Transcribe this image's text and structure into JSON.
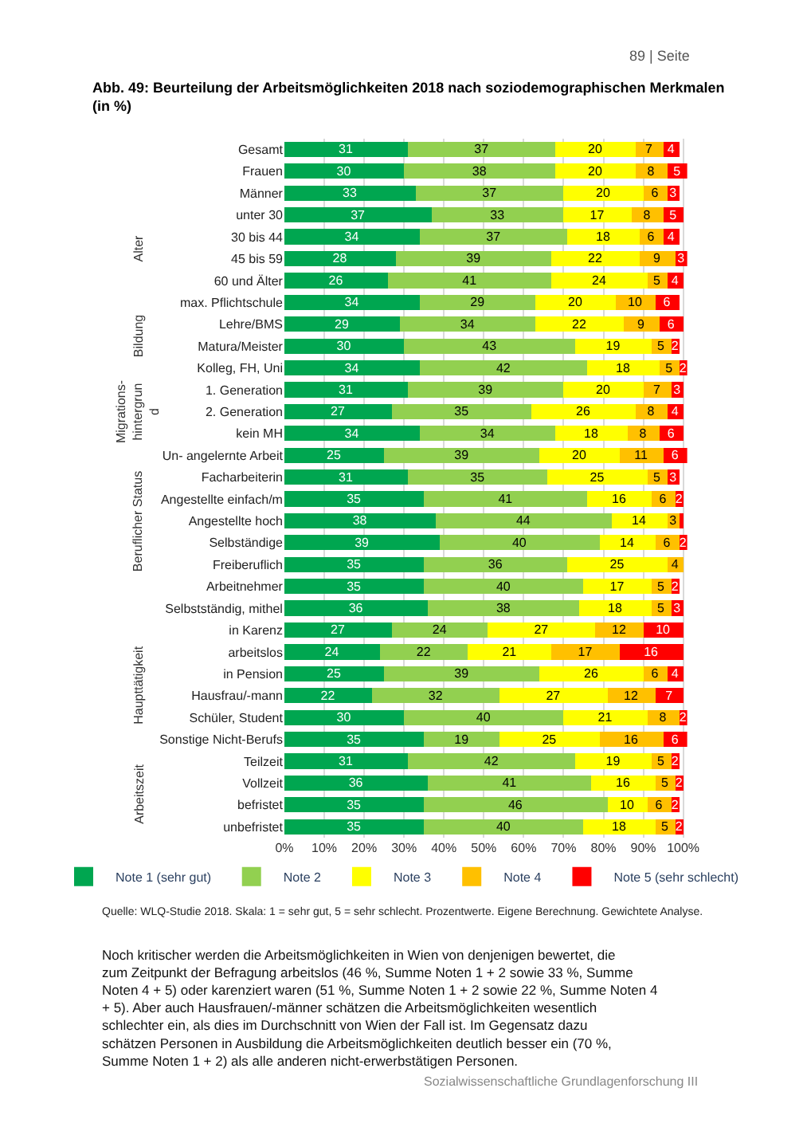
{
  "chart_data": {
    "type": "bar",
    "orientation": "horizontal",
    "stacked": true,
    "title": "Abb. 49: Beurteilung der Arbeitsmöglichkeiten 2018 nach soziodemographischen Merkmalen (in %)",
    "categories": [
      "Gesamt",
      "Frauen",
      "Männer",
      "unter 30",
      "30 bis 44",
      "45 bis 59",
      "60 und Älter",
      "max. Pflichtschule",
      "Lehre/BMS",
      "Matura/Meister",
      "Kolleg, FH, Uni",
      "1. Generation",
      "2. Generation",
      "kein MH",
      "Un- angelernte Arbeit",
      "Facharbeiterin",
      "Angestellte einfach/m",
      "Angestellte hoch",
      "Selbständige",
      "Freiberuflich",
      "Arbeitnehmer",
      "Selbstständig, mithel",
      "in Karenz",
      "arbeitslos",
      "in Pension",
      "Hausfrau/-mann",
      "Schüler, Student",
      "Sonstige Nicht-Berufs",
      "Teilzeit",
      "Vollzeit",
      "befristet",
      "unbefristet"
    ],
    "series": [
      {
        "name": "Note 1 (sehr gut)",
        "color": "#00a650",
        "values": [
          31,
          30,
          33,
          37,
          34,
          28,
          26,
          34,
          29,
          30,
          34,
          31,
          27,
          34,
          25,
          31,
          35,
          38,
          39,
          35,
          35,
          36,
          27,
          24,
          25,
          22,
          30,
          35,
          31,
          36,
          35,
          35
        ],
        "value_labels": [
          "31",
          "30",
          "33",
          "37",
          "34",
          "28",
          "26",
          "34",
          "29",
          "30",
          "34",
          "31",
          "27",
          "34",
          "25",
          "31",
          "35",
          "38",
          "39",
          "35",
          "35",
          "36",
          "27",
          "24",
          "25",
          "22",
          "30",
          "35",
          "31",
          "36",
          "35",
          "35"
        ]
      },
      {
        "name": "Note 2",
        "color": "#92d050",
        "values": [
          37,
          38,
          37,
          33,
          37,
          39,
          41,
          29,
          34,
          43,
          42,
          39,
          35,
          34,
          39,
          35,
          41,
          44,
          40,
          36,
          40,
          38,
          24,
          22,
          39,
          32,
          40,
          19,
          42,
          41,
          46,
          40
        ],
        "value_labels": [
          "37",
          "38",
          "37",
          "33",
          "37",
          "39",
          "41",
          "29",
          "34",
          "43",
          "42",
          "39",
          "35",
          "34",
          "39",
          "35",
          "41",
          "44",
          "40",
          "36",
          "40",
          "38",
          "24",
          "22",
          "39",
          "32",
          "40",
          "19",
          "42",
          "41",
          "46",
          "40"
        ]
      },
      {
        "name": "Note 3",
        "color": "#ffff00",
        "values": [
          20,
          20,
          20,
          17,
          18,
          22,
          24,
          20,
          22,
          19,
          18,
          20,
          26,
          18,
          20,
          25,
          16,
          14,
          14,
          25,
          17,
          18,
          27,
          21,
          26,
          27,
          21,
          25,
          19,
          16,
          10,
          18
        ],
        "value_labels": [
          "20",
          "20",
          "20",
          "17",
          "18",
          "22",
          "24",
          "20",
          "22",
          "19",
          "18",
          "20",
          "26",
          "18",
          "20",
          "25",
          "16",
          "14",
          "14",
          "25",
          "17",
          "18",
          "27",
          "21",
          "26",
          "27",
          "21",
          "25",
          "19",
          "16",
          "10",
          "18"
        ]
      },
      {
        "name": "Note 4",
        "color": "#ffc000",
        "values": [
          7,
          8,
          6,
          8,
          6,
          9,
          5,
          10,
          9,
          5,
          5,
          7,
          8,
          8,
          11,
          5,
          6,
          3,
          6,
          4,
          5,
          5,
          12,
          17,
          6,
          12,
          8,
          16,
          5,
          5,
          6,
          5
        ],
        "value_labels": [
          "7",
          "8",
          "6",
          "8",
          "6",
          "9",
          "5",
          "10",
          "9",
          "5",
          "5",
          "7",
          "8",
          "8",
          "11",
          "5",
          "6",
          "3",
          "6",
          "4",
          "5",
          "5",
          "12",
          "17",
          "6",
          "12",
          "8",
          "16",
          "5",
          "5",
          "6",
          "5"
        ]
      },
      {
        "name": "Note 5 (sehr schlecht)",
        "color": "#ff0000",
        "values": [
          4,
          5,
          3,
          5,
          4,
          3,
          4,
          6,
          6,
          2,
          2,
          3,
          4,
          6,
          6,
          3,
          2,
          1,
          2,
          null,
          2,
          3,
          10,
          16,
          4,
          7,
          2,
          6,
          2,
          2,
          2,
          2
        ],
        "value_labels": [
          "4",
          "5",
          "3",
          "5",
          "4",
          "3",
          "4",
          "6",
          "6",
          "2",
          "2",
          "3",
          "4",
          "6",
          "6",
          "3",
          "2",
          null,
          "2",
          null,
          "2",
          "3",
          "10",
          "16",
          "4",
          "7",
          "2",
          "6",
          "2",
          "2",
          "2",
          "2"
        ]
      }
    ],
    "xlim": [
      0,
      101
    ],
    "xticks": [
      {
        "value": 0,
        "label": "0%"
      },
      {
        "value": 10,
        "label": "10%"
      },
      {
        "value": 20,
        "label": "20%"
      },
      {
        "value": 30,
        "label": "30%"
      },
      {
        "value": 40,
        "label": "40%"
      },
      {
        "value": 50,
        "label": "50%"
      },
      {
        "value": 60,
        "label": "60%"
      },
      {
        "value": 70,
        "label": "70%"
      },
      {
        "value": 80,
        "label": "80%"
      },
      {
        "value": 90,
        "label": "90%"
      },
      {
        "value": 100,
        "label": "100%"
      }
    ],
    "grid": "x",
    "legend": "bottom",
    "annotations": [
      "89 | Seite",
      "Quelle: WLQ-Studie 2018. Skala: 1 = sehr gut, 5 = sehr schlecht. Prozentwerte. Eigene Berechnung. Gewichtete Analyse.",
      "Noch kritischer werden die Arbeitsmöglichkeiten in Wien von denjenigen bewertet, die zum Zeitpunkt der Befragung arbeitslos (46 %, Summe Noten 1 + 2 sowie 33 %, Summe Noten 4 + 5) oder karenziert waren (51 %, Summe Noten 1 + 2 sowie 22 %, Summe Noten 4 + 5). Aber auch Hausfrauen/-männer schätzen die Arbeitsmöglichkeiten wesentlich schlechter ein, als dies im Durchschnitt von Wien der Fall ist. Im Gegensatz dazu schätzen Personen in Ausbildung die Arbeitsmöglichkeiten deutlich besser ein (70 %, Summe Noten 1 + 2) als alle anderen nicht-erwerbstätigen Personen.",
      "Sozialwissenschaftliche Grundlagenforschung III",
      "Alter",
      "Bildung",
      "Migrations-\nhintergrun\nd",
      "Beruflicher Status",
      "Haupttätigkeit",
      "Arbeitszeit"
    ]
  }
}
